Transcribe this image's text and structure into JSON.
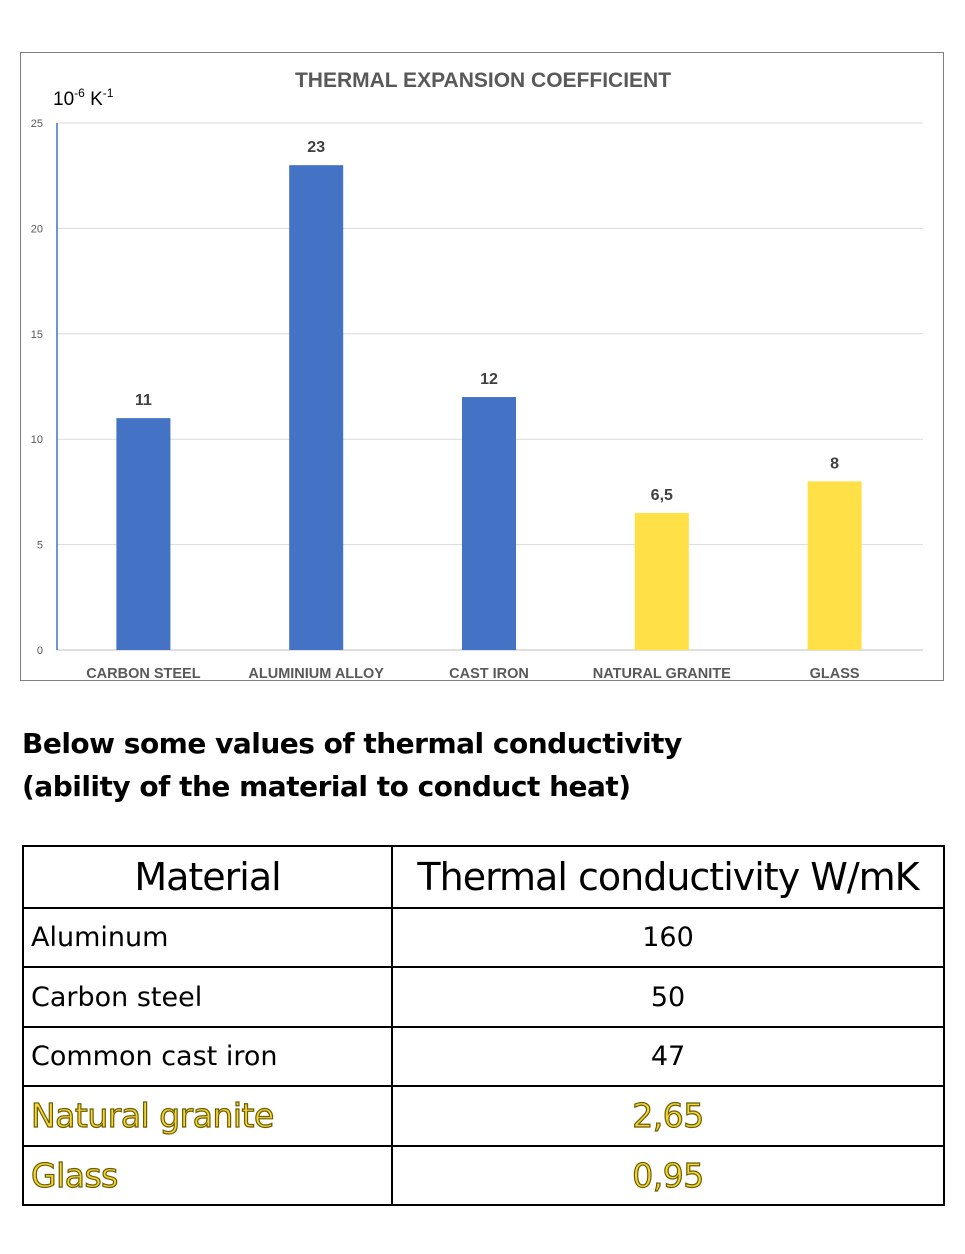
{
  "chart_data": {
    "type": "bar",
    "title": "THERMAL EXPANSION COEFFICIENT",
    "unit_label": {
      "base": "10",
      "exp1": "-6",
      "mid": " K",
      "exp2": "-1"
    },
    "categories": [
      "CARBON STEEL",
      "ALUMINIUM ALLOY",
      "CAST IRON",
      "NATURAL GRANITE",
      "GLASS"
    ],
    "values": [
      11,
      23,
      12,
      6.5,
      8
    ],
    "value_labels": [
      "11",
      "23",
      "12",
      "6,5",
      "8"
    ],
    "bar_colors": [
      "#4472c4",
      "#4472c4",
      "#4472c4",
      "#ffe047",
      "#ffe047"
    ],
    "yticks": [
      0,
      5,
      10,
      15,
      20,
      25
    ],
    "ylim": [
      0,
      25
    ],
    "grid": true,
    "xlabel": "",
    "ylabel": ""
  },
  "intro": {
    "line1": "Below some values of thermal conductivity",
    "line2": "(ability of the material to conduct heat)"
  },
  "table": {
    "headers": [
      "Material",
      "Thermal conductivity W/mK"
    ],
    "rows": [
      {
        "material": "Aluminum",
        "value": "160",
        "highlight": false
      },
      {
        "material": "Carbon steel",
        "value": "50",
        "highlight": false
      },
      {
        "material": "Common cast iron",
        "value": "47",
        "highlight": false
      },
      {
        "material": "Natural granite",
        "value": "2,65",
        "highlight": true
      },
      {
        "material": "Glass",
        "value": "0,95",
        "highlight": true
      }
    ]
  }
}
